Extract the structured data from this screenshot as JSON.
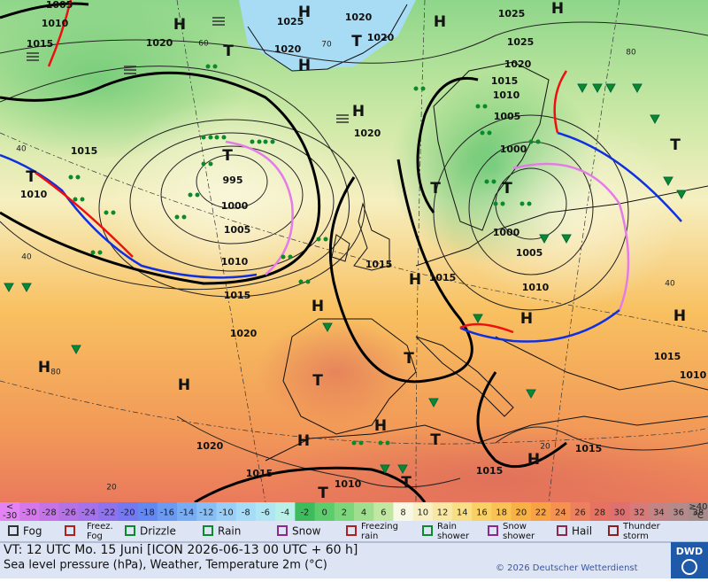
{
  "map": {
    "labels": [
      "1005",
      "1010",
      "1015",
      "1020",
      "H",
      "1025",
      "H",
      "1020",
      "1020",
      "H",
      "1025",
      "H",
      "1025",
      "T",
      "1020",
      "H",
      "T",
      "1020",
      "1015",
      "1010",
      "1005",
      "1000",
      "H",
      "1020",
      "1015",
      "T",
      "1010",
      "T",
      "995",
      "1000",
      "1005",
      "1010",
      "1015",
      "1015",
      "H",
      "1015",
      "T",
      "T",
      "1000",
      "1005",
      "1010",
      "H",
      "1020",
      "H",
      "T",
      "H",
      "1015",
      "1010",
      "H",
      "H",
      "T",
      "T",
      "1020",
      "H",
      "H",
      "T",
      "1015",
      "1010",
      "T",
      "T",
      "1015",
      "H",
      "1015"
    ],
    "grid_labels": [
      "40",
      "40",
      "80",
      "20",
      "20",
      "40",
      "60",
      "70",
      "80"
    ]
  },
  "color_scale": {
    "below": [
      "<",
      "-30"
    ],
    "values": [
      -30,
      -28,
      -26,
      -24,
      -22,
      -20,
      -18,
      -16,
      -14,
      -12,
      -10,
      -8,
      -6,
      -4,
      -2,
      0,
      2,
      4,
      6,
      8,
      10,
      12,
      14,
      16,
      18,
      20,
      22,
      24,
      26,
      28,
      30,
      32,
      34,
      36,
      38
    ],
    "above": [
      "≥40",
      "°C"
    ],
    "colors": [
      "#e484f4",
      "#d478ec",
      "#c474e6",
      "#b472e6",
      "#a472ea",
      "#8e72ee",
      "#7478f2",
      "#6488f2",
      "#6a9af2",
      "#78acf4",
      "#88bef6",
      "#98cef8",
      "#a6dcf8",
      "#b0e6f2",
      "#b8f0e8",
      "#3cbc5c",
      "#5ccc6c",
      "#7cd67c",
      "#9ede8e",
      "#c0e8a2",
      "#f8f8e4",
      "#f8f0c4",
      "#f8e8a4",
      "#f8de84",
      "#f8d064",
      "#f8c254",
      "#f8b244",
      "#f8a244",
      "#f69250",
      "#ee805e",
      "#e67262",
      "#de7070",
      "#d67a7a",
      "#c28484",
      "#b48a8a",
      "#a88c8c"
    ]
  },
  "legend": [
    [
      "Fog"
    ],
    [
      "Freez.",
      "Fog"
    ],
    [
      "Drizzle"
    ],
    [
      "Rain"
    ],
    [
      "Snow"
    ],
    [
      "Freezing",
      "rain"
    ],
    [
      "Rain",
      "shower"
    ],
    [
      "Snow",
      "shower"
    ],
    [
      "Hail"
    ],
    [
      "Thunder",
      "storm"
    ]
  ],
  "footer": {
    "valid": "VT: 12 UTC Mo.  15 Juni [ICON 2026-06-13  00 UTC + 60 h]",
    "description": "Sea level pressure (hPa), Weather, Temperature 2m (°C)",
    "copyright": "© 2026 Deutscher Wetterdienst",
    "logo": "DWD"
  }
}
